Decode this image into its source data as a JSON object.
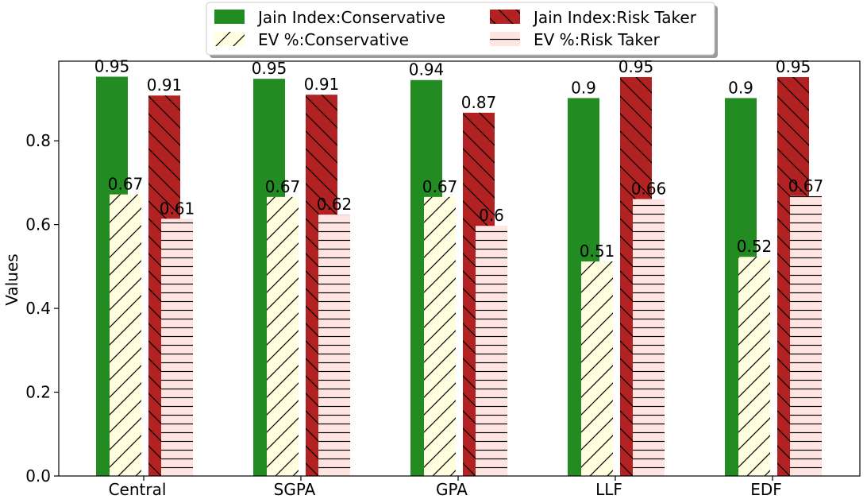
{
  "chart_data": {
    "type": "bar",
    "categories": [
      "Central",
      "SGPA",
      "GPA",
      "LLF",
      "EDF"
    ],
    "ylabel": "Values",
    "xlabel": "",
    "ylim": [
      0,
      0.99
    ],
    "yticks": [
      "0.0",
      "0.2",
      "0.4",
      "0.6",
      "0.8"
    ],
    "grid": false,
    "legend_position": "top-center, outside plot, 2 columns",
    "series": [
      {
        "name": "Jain Index:Conservative",
        "values": [
          0.953,
          0.948,
          0.945,
          0.902,
          0.902
        ],
        "labels": [
          "0.95",
          "0.95",
          "0.94",
          "0.9",
          "0.9"
        ],
        "color": "#228b22",
        "hatch": "none"
      },
      {
        "name": "EV %:Conservative",
        "values": [
          0.672,
          0.666,
          0.666,
          0.512,
          0.523
        ],
        "labels": [
          "0.67",
          "0.67",
          "0.67",
          "0.51",
          "0.52"
        ],
        "color": "#ffffe0",
        "hatch": "forward-slash"
      },
      {
        "name": "Jain Index:Risk Taker",
        "values": [
          0.908,
          0.91,
          0.867,
          0.952,
          0.952
        ],
        "labels": [
          "0.91",
          "0.91",
          "0.87",
          "0.95",
          "0.95"
        ],
        "color": "#b22222",
        "hatch": "back-slash"
      },
      {
        "name": "EV %:Risk Taker",
        "values": [
          0.614,
          0.624,
          0.597,
          0.661,
          0.668
        ],
        "labels": [
          "0.61",
          "0.62",
          "0.6",
          "0.66",
          "0.67"
        ],
        "color": "#ffe4e1",
        "hatch": "horizontal"
      }
    ]
  }
}
